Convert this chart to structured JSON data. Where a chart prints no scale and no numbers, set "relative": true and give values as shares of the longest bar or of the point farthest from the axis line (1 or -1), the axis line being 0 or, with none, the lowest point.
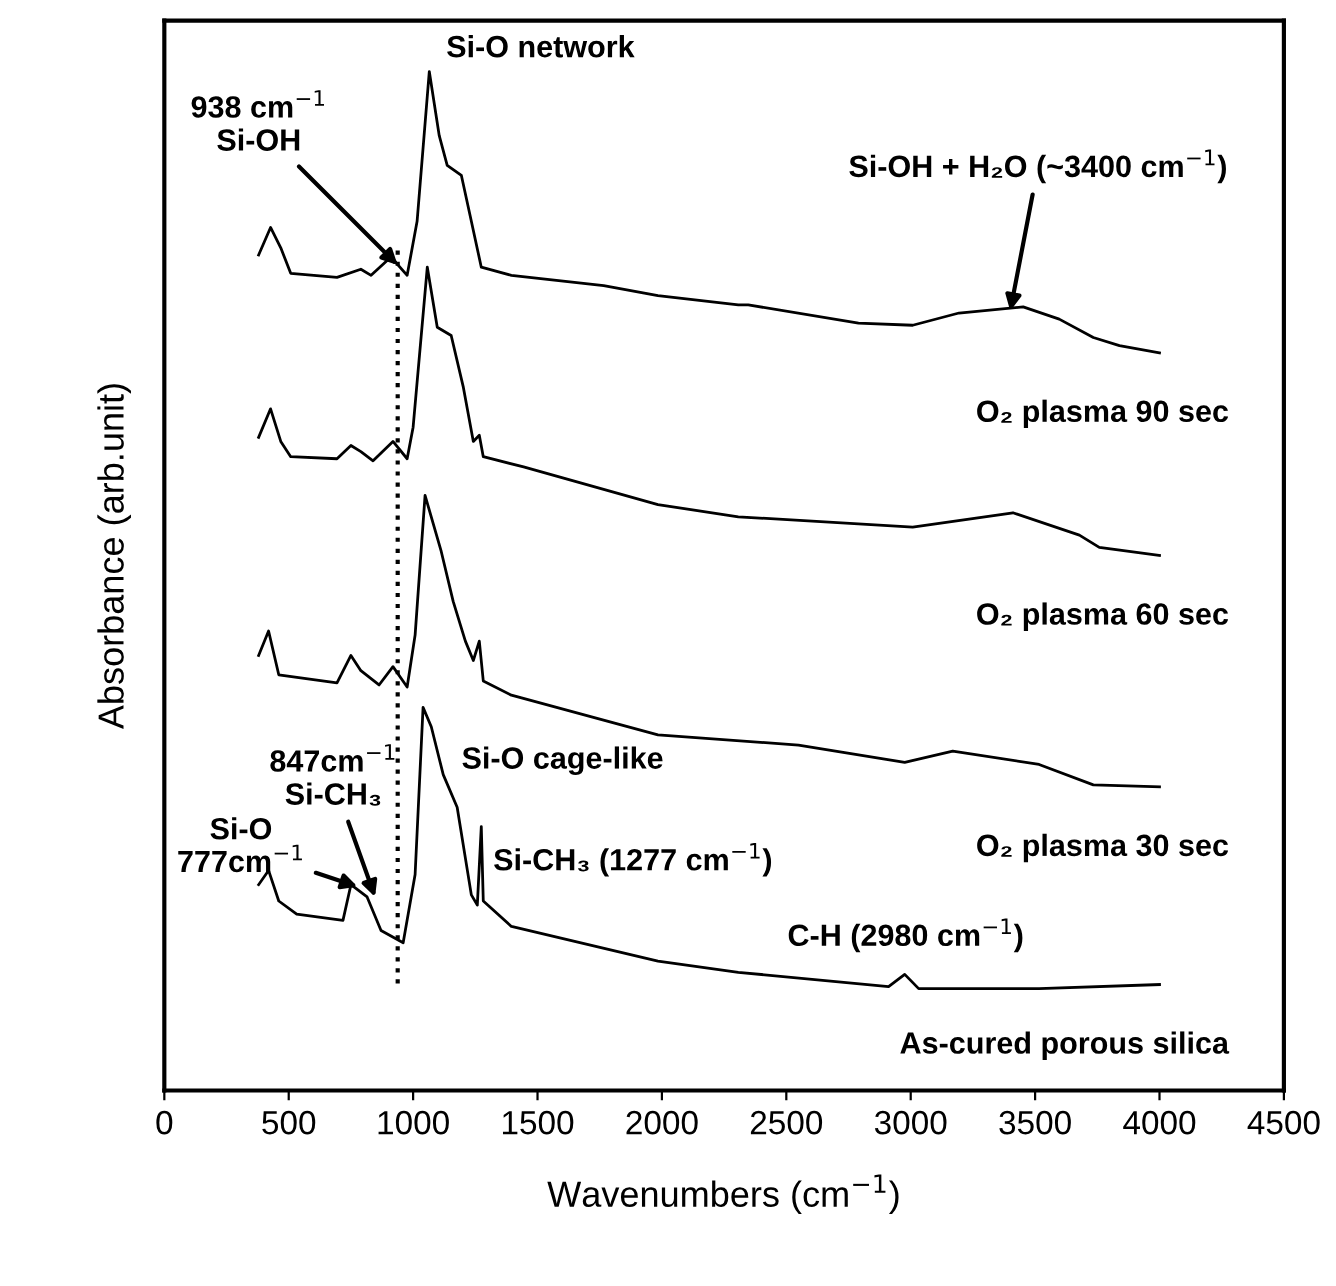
{
  "chart_data": {
    "type": "line",
    "relative": true,
    "xlabel": "Wavenumbers (cm$^{−1}$)",
    "ylabel": "Absorbance (arb.unit)",
    "xlim": [
      0,
      4500
    ],
    "xticks": [
      0,
      500,
      1000,
      1500,
      2000,
      2500,
      3000,
      3500,
      4000,
      4500
    ],
    "legend": false,
    "grid": false,
    "marker": "none",
    "line_style": "solid",
    "series": [
      {
        "name": "O₂ plasma 90 sec",
        "color": "#000000",
        "x": [
          379,
          427,
          468,
          508,
          694,
          790,
          831,
          911,
          976,
          1016,
          1065,
          1105,
          1137,
          1194,
          1234,
          1274,
          1395,
          1766,
          1984,
          2307,
          2347,
          2790,
          3008,
          3194,
          3452,
          3597,
          3734,
          3839,
          4000
        ],
        "values": [
          0.82,
          0.847,
          0.827,
          0.802,
          0.798,
          0.806,
          0.8,
          0.818,
          0.8,
          0.853,
          1.0,
          0.937,
          0.908,
          0.898,
          0.853,
          0.808,
          0.8,
          0.79,
          0.78,
          0.771,
          0.771,
          0.753,
          0.751,
          0.763,
          0.769,
          0.757,
          0.739,
          0.731,
          0.724
        ]
      },
      {
        "name": "O₂ plasma 60 sec",
        "color": "#000000",
        "x": [
          379,
          427,
          468,
          508,
          694,
          750,
          790,
          839,
          919,
          976,
          1000,
          1057,
          1097,
          1153,
          1202,
          1242,
          1266,
          1282,
          1444,
          1984,
          2307,
          3008,
          3411,
          3678,
          3758,
          4000
        ],
        "values": [
          0.641,
          0.669,
          0.637,
          0.622,
          0.62,
          0.633,
          0.627,
          0.618,
          0.637,
          0.62,
          0.651,
          0.808,
          0.749,
          0.741,
          0.69,
          0.637,
          0.643,
          0.622,
          0.612,
          0.575,
          0.563,
          0.553,
          0.567,
          0.545,
          0.533,
          0.525
        ]
      },
      {
        "name": "O₂ plasma 30 sec",
        "color": "#000000",
        "x": [
          379,
          419,
          460,
          694,
          750,
          790,
          863,
          919,
          976,
          1008,
          1048,
          1113,
          1161,
          1210,
          1242,
          1266,
          1282,
          1395,
          1984,
          2549,
          2976,
          3169,
          3516,
          3734,
          4000
        ],
        "values": [
          0.427,
          0.451,
          0.408,
          0.4,
          0.427,
          0.412,
          0.398,
          0.416,
          0.396,
          0.447,
          0.584,
          0.529,
          0.48,
          0.441,
          0.422,
          0.441,
          0.402,
          0.388,
          0.349,
          0.339,
          0.322,
          0.333,
          0.32,
          0.3,
          0.298
        ]
      },
      {
        "name": "As-cured porous silica",
        "color": "#000000",
        "x": [
          379,
          419,
          460,
          532,
          718,
          750,
          815,
          871,
          960,
          1008,
          1040,
          1073,
          1121,
          1177,
          1234,
          1258,
          1274,
          1282,
          1395,
          1984,
          2307,
          2911,
          2976,
          3032,
          3516,
          4000
        ],
        "values": [
          0.202,
          0.216,
          0.186,
          0.173,
          0.167,
          0.202,
          0.19,
          0.157,
          0.145,
          0.212,
          0.376,
          0.357,
          0.31,
          0.278,
          0.192,
          0.182,
          0.259,
          0.186,
          0.161,
          0.127,
          0.116,
          0.102,
          0.114,
          0.1,
          0.1,
          0.104
        ]
      }
    ],
    "ref_lines": [
      {
        "axis": "x",
        "value": 938,
        "color": "#000000",
        "line_style": "dotted"
      }
    ],
    "annotations": [
      {
        "text": "Si-O network",
        "x": 1065,
        "y": 1.0
      },
      {
        "text": "938 cm$^{−1}$\nSi-OH",
        "x": 938,
        "y": 0.81
      },
      {
        "text": "Si-OH + H₂O (~3400 cm$^{−1}$)",
        "x": 3400,
        "y": 0.765
      },
      {
        "text": "847cm$^{−1}$\nSi-CH₃",
        "x": 847,
        "y": 0.19
      },
      {
        "text": "Si-O\n777cm$^{−1}$",
        "x": 777,
        "y": 0.2
      },
      {
        "text": "Si-O cage-like",
        "x": 1150,
        "y": 0.31
      },
      {
        "text": "Si-CH₃ (1277 cm$^{−1}$)",
        "x": 1277,
        "y": 0.259
      },
      {
        "text": "C-H (2980 cm$^{−1}$)",
        "x": 2980,
        "y": 0.114
      }
    ]
  }
}
